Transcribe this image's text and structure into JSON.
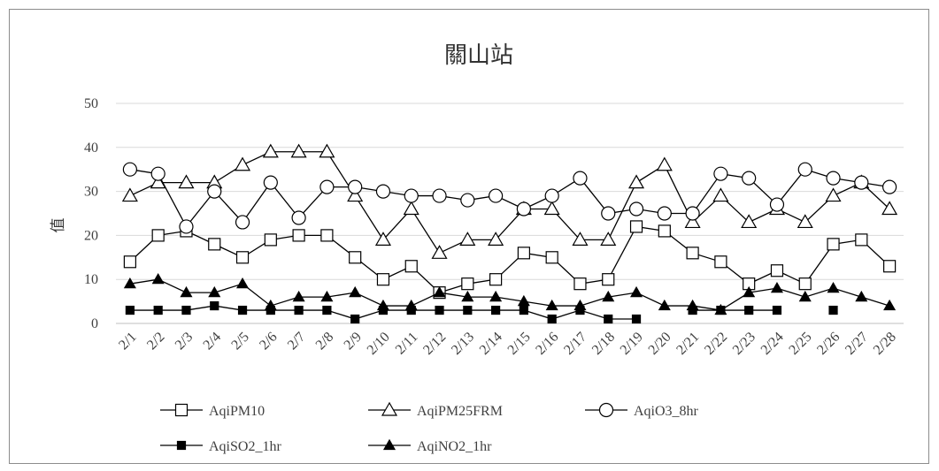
{
  "chart_data": {
    "type": "line",
    "title": "關山站",
    "ylabel": "值",
    "xlabel": "",
    "ylim": [
      0,
      50
    ],
    "yticks": [
      0,
      10,
      20,
      30,
      40,
      50
    ],
    "grid": "horizontal",
    "legend_position": "bottom",
    "categories": [
      "2/1",
      "2/2",
      "2/3",
      "2/4",
      "2/5",
      "2/6",
      "2/7",
      "2/8",
      "2/9",
      "2/10",
      "2/11",
      "2/12",
      "2/13",
      "2/14",
      "2/15",
      "2/16",
      "2/17",
      "2/18",
      "2/19",
      "2/20",
      "2/21",
      "2/22",
      "2/23",
      "2/24",
      "2/25",
      "2/26",
      "2/27",
      "2/28"
    ],
    "series": [
      {
        "name": "AqiPM10",
        "marker": "square-open",
        "values": [
          14,
          20,
          21,
          18,
          15,
          19,
          20,
          20,
          15,
          10,
          13,
          7,
          9,
          10,
          16,
          15,
          9,
          10,
          22,
          21,
          16,
          14,
          9,
          12,
          9,
          18,
          19,
          13
        ]
      },
      {
        "name": "AqiPM25FRM",
        "marker": "triangle-open",
        "values": [
          29,
          32,
          32,
          32,
          36,
          39,
          39,
          39,
          29,
          19,
          26,
          16,
          19,
          19,
          26,
          26,
          19,
          19,
          32,
          36,
          23,
          29,
          23,
          26,
          23,
          29,
          32,
          26
        ]
      },
      {
        "name": "AqiO3_8hr",
        "marker": "circle-open",
        "values": [
          35,
          34,
          22,
          30,
          23,
          32,
          24,
          31,
          31,
          30,
          29,
          29,
          28,
          29,
          26,
          29,
          33,
          25,
          26,
          25,
          25,
          34,
          33,
          27,
          35,
          33,
          32,
          31
        ]
      },
      {
        "name": "AqiSO2_1hr",
        "marker": "square-filled",
        "values": [
          3,
          3,
          3,
          4,
          3,
          3,
          3,
          3,
          1,
          3,
          3,
          3,
          3,
          3,
          3,
          1,
          3,
          1,
          1,
          null,
          3,
          3,
          3,
          3,
          null,
          3,
          null,
          null
        ]
      },
      {
        "name": "AqiNO2_1hr",
        "marker": "triangle-filled",
        "values": [
          9,
          10,
          7,
          7,
          9,
          4,
          6,
          6,
          7,
          4,
          4,
          7,
          6,
          6,
          5,
          4,
          4,
          6,
          7,
          4,
          4,
          3,
          7,
          8,
          6,
          8,
          6,
          4
        ]
      }
    ],
    "colors": {
      "line": "#000000",
      "grid": "#d9d9d9",
      "axis": "#bfbfbf",
      "text": "#404040"
    }
  }
}
